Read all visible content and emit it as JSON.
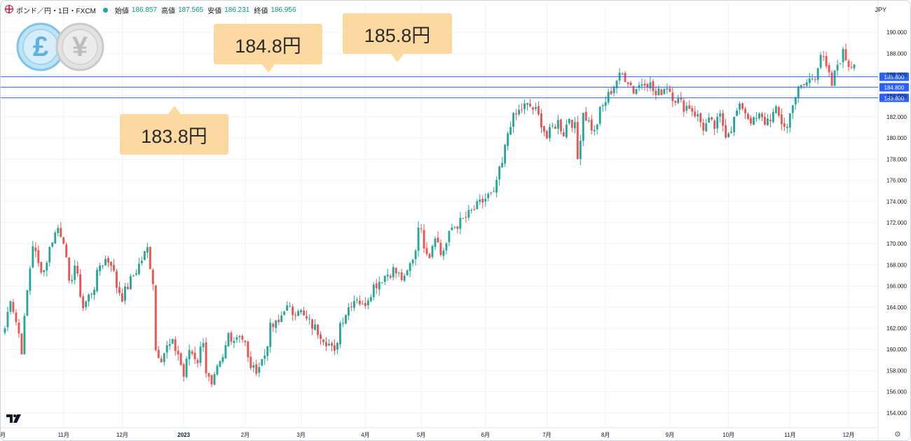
{
  "header": {
    "symbol": "ポンド／円・1日・FXCM",
    "open_label": "始値",
    "open": "186.857",
    "high_label": "高値",
    "high": "187.565",
    "low_label": "安値",
    "low": "186.231",
    "close_label": "終値",
    "close": "186.956"
  },
  "currency": "JPY",
  "icons": [
    "pound-coin-icon",
    "yen-coin-icon",
    "tradingview-logo-icon",
    "settings-gear-icon",
    "symbol-flag-icon"
  ],
  "callouts": {
    "c1": "184.8円",
    "c2": "185.8円",
    "c3": "183.8円"
  },
  "colors": {
    "up": "#26a69a",
    "down": "#ef5350",
    "hline": "#2962ff",
    "callout_bg": "#fbd9a0"
  },
  "chart_data": {
    "type": "candlestick",
    "ylim": [
      152.6,
      191.4
    ],
    "y_ticks": [
      "190.000",
      "188.000",
      "186.000",
      "184.000",
      "182.000",
      "180.000",
      "178.000",
      "176.000",
      "174.000",
      "172.000",
      "170.000",
      "168.000",
      "166.000",
      "164.000",
      "162.000",
      "160.000",
      "158.000",
      "156.000",
      "154.000"
    ],
    "x_ticks": [
      {
        "label": "月",
        "day": 0
      },
      {
        "label": "11月",
        "day": 21
      },
      {
        "label": "12月",
        "day": 42
      },
      {
        "label": "2023",
        "day": 64
      },
      {
        "label": "2月",
        "day": 86
      },
      {
        "label": "3月",
        "day": 106
      },
      {
        "label": "4月",
        "day": 129
      },
      {
        "label": "5月",
        "day": 149
      },
      {
        "label": "6月",
        "day": 172
      },
      {
        "label": "7月",
        "day": 194
      },
      {
        "label": "8月",
        "day": 215
      },
      {
        "label": "9月",
        "day": 238
      },
      {
        "label": "10月",
        "day": 259
      },
      {
        "label": "11月",
        "day": 281
      },
      {
        "label": "12月",
        "day": 302
      }
    ],
    "x_range": [
      0,
      304
    ],
    "hlines": [
      185.8,
      184.8,
      183.8
    ],
    "hline_labels": [
      "185.800",
      "184.800",
      "183.800"
    ],
    "anchors": [
      [
        0,
        162.0
      ],
      [
        2,
        165.0
      ],
      [
        5,
        161.5
      ],
      [
        6,
        160.0
      ],
      [
        8,
        165.5
      ],
      [
        10,
        170.0
      ],
      [
        12,
        168.0
      ],
      [
        14,
        167.5
      ],
      [
        17,
        170.5
      ],
      [
        19,
        171.5
      ],
      [
        21,
        170.5
      ],
      [
        23,
        166.0
      ],
      [
        25,
        168.0
      ],
      [
        28,
        164.0
      ],
      [
        30,
        165.0
      ],
      [
        32,
        166.0
      ],
      [
        34,
        168.0
      ],
      [
        36,
        168.5
      ],
      [
        38,
        168.3
      ],
      [
        40,
        166.0
      ],
      [
        42,
        165.0
      ],
      [
        45,
        166.5
      ],
      [
        49,
        168.5
      ],
      [
        51,
        169.5
      ],
      [
        53,
        166.5
      ],
      [
        54,
        160.0
      ],
      [
        56,
        159.3
      ],
      [
        58,
        160.2
      ],
      [
        60,
        160.5
      ],
      [
        62,
        159.6
      ],
      [
        64,
        157.5
      ],
      [
        66,
        160.0
      ],
      [
        69,
        159.0
      ],
      [
        71,
        161.0
      ],
      [
        72,
        158.0
      ],
      [
        74,
        156.3
      ],
      [
        76,
        158.0
      ],
      [
        78,
        159.0
      ],
      [
        80,
        161.5
      ],
      [
        82,
        161.0
      ],
      [
        84,
        161.6
      ],
      [
        86,
        160.5
      ],
      [
        87,
        159.0
      ],
      [
        89,
        158.0
      ],
      [
        91,
        158.5
      ],
      [
        93,
        159.5
      ],
      [
        95,
        162.0
      ],
      [
        98,
        162.5
      ],
      [
        100,
        164.0
      ],
      [
        103,
        163.5
      ],
      [
        105,
        164.0
      ],
      [
        107,
        163.0
      ],
      [
        109,
        162.5
      ],
      [
        111,
        162.0
      ],
      [
        113,
        161.5
      ],
      [
        116,
        160.5
      ],
      [
        118,
        159.5
      ],
      [
        120,
        162.5
      ],
      [
        122,
        163.5
      ],
      [
        124,
        164.5
      ],
      [
        126,
        165.0
      ],
      [
        128,
        164.0
      ],
      [
        130,
        165.0
      ],
      [
        132,
        166.0
      ],
      [
        134,
        166.5
      ],
      [
        136,
        167.0
      ],
      [
        139,
        167.5
      ],
      [
        141,
        167.0
      ],
      [
        143,
        166.5
      ],
      [
        145,
        168.0
      ],
      [
        147,
        169.5
      ],
      [
        148,
        172.0
      ],
      [
        150,
        170.0
      ],
      [
        152,
        169.0
      ],
      [
        154,
        171.0
      ],
      [
        156,
        169.0
      ],
      [
        158,
        170.0
      ],
      [
        160,
        171.5
      ],
      [
        163,
        172.0
      ],
      [
        165,
        172.5
      ],
      [
        167,
        173.0
      ],
      [
        169,
        173.5
      ],
      [
        171,
        174.0
      ],
      [
        173,
        174.5
      ],
      [
        175,
        174.5
      ],
      [
        176,
        176.0
      ],
      [
        178,
        177.5
      ],
      [
        180,
        180.5
      ],
      [
        181,
        181.5
      ],
      [
        184,
        182.5
      ],
      [
        186,
        183.0
      ],
      [
        188,
        183.0
      ],
      [
        190,
        182.5
      ],
      [
        192,
        181.5
      ],
      [
        194,
        180.0
      ],
      [
        196,
        181.0
      ],
      [
        198,
        181.5
      ],
      [
        200,
        180.5
      ],
      [
        202,
        182.0
      ],
      [
        204,
        181.0
      ],
      [
        205,
        178.0
      ],
      [
        207,
        182.5
      ],
      [
        209,
        181.5
      ],
      [
        211,
        180.5
      ],
      [
        213,
        182.5
      ],
      [
        215,
        183.5
      ],
      [
        217,
        184.5
      ],
      [
        219,
        185.5
      ],
      [
        221,
        186.0
      ],
      [
        223,
        185.5
      ],
      [
        225,
        184.5
      ],
      [
        227,
        185.0
      ],
      [
        229,
        185.5
      ],
      [
        231,
        185.0
      ],
      [
        233,
        184.0
      ],
      [
        235,
        184.5
      ],
      [
        237,
        185.0
      ],
      [
        239,
        184.0
      ],
      [
        241,
        183.5
      ],
      [
        243,
        183.0
      ],
      [
        245,
        183.0
      ],
      [
        248,
        182.0
      ],
      [
        250,
        181.0
      ],
      [
        252,
        181.5
      ],
      [
        254,
        181.0
      ],
      [
        256,
        182.0
      ],
      [
        258,
        180.5
      ],
      [
        260,
        181.0
      ],
      [
        262,
        182.5
      ],
      [
        264,
        183.0
      ],
      [
        266,
        182.0
      ],
      [
        268,
        181.5
      ],
      [
        270,
        182.0
      ],
      [
        272,
        181.5
      ],
      [
        274,
        182.0
      ],
      [
        276,
        182.5
      ],
      [
        278,
        181.5
      ],
      [
        280,
        181.0
      ],
      [
        282,
        183.5
      ],
      [
        284,
        184.5
      ],
      [
        286,
        185.0
      ],
      [
        288,
        185.5
      ],
      [
        290,
        186.0
      ],
      [
        292,
        188.0
      ],
      [
        294,
        186.5
      ],
      [
        296,
        185.0
      ],
      [
        298,
        187.0
      ],
      [
        300,
        188.0
      ],
      [
        302,
        187.0
      ],
      [
        304,
        186.956
      ]
    ]
  }
}
